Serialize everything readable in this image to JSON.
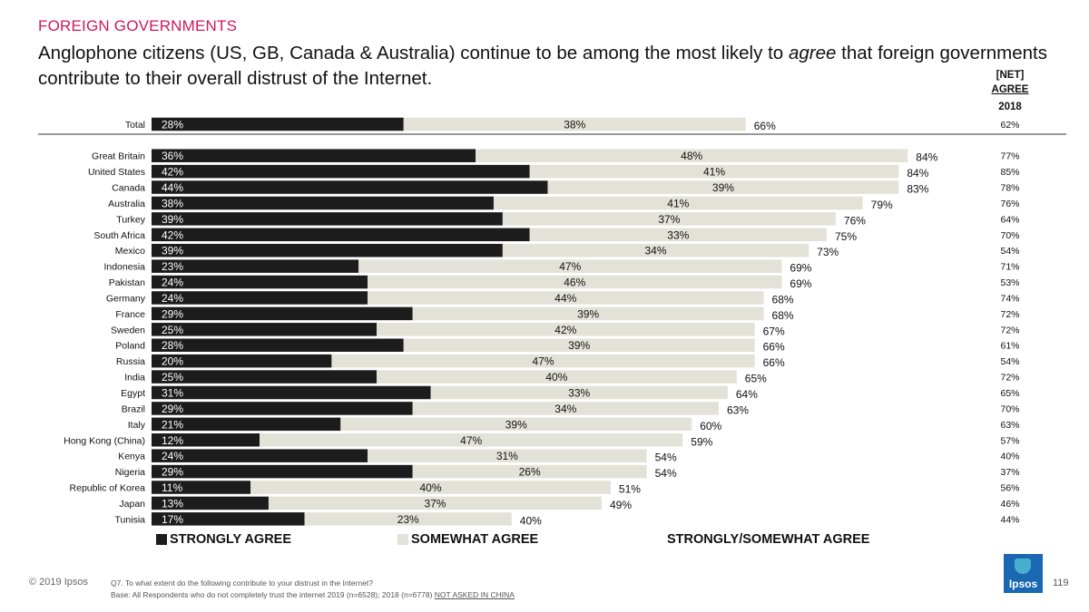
{
  "section_label": "FOREIGN GOVERNMENTS",
  "headline": {
    "pre": "Anglophone citizens (US, GB, Canada & Australia) continue to be among the most likely to ",
    "emph": "agree",
    "post": " that foreign governments contribute to their overall distrust of the Internet."
  },
  "net_header": {
    "line1": "[NET]",
    "line2": "AGREE",
    "line3": "2018"
  },
  "legend": {
    "strongly": "STRONGLY AGREE",
    "somewhat": "SOMEWHAT AGREE",
    "net": "STRONGLY/SOMEWHAT AGREE"
  },
  "colors": {
    "strongly": "#1c1c1c",
    "somewhat": "#e3e2d8",
    "accent": "#d1185d",
    "logo": "#1a68b2"
  },
  "footer": {
    "copyright": "© 2019 Ipsos",
    "question": "Q7.  To what extent do the following contribute to your distrust in the Internet?",
    "base": "Base: All Respondents who do not completely trust the internet 2019 (n=6528); 2018 (n=6778) ",
    "not_asked": "NOT ASKED IN CHINA",
    "page": "119",
    "logo_text": "Ipsos"
  },
  "chart_data": {
    "type": "bar",
    "orientation": "horizontal",
    "stacked": true,
    "unit": "%",
    "categories": [
      "Total",
      "Great Britain",
      "United States",
      "Canada",
      "Australia",
      "Turkey",
      "South Africa",
      "Mexico",
      "Indonesia",
      "Pakistan",
      "Germany",
      "France",
      "Sweden",
      "Poland",
      "Russia",
      "India",
      "Egypt",
      "Brazil",
      "Italy",
      "Hong Kong (China)",
      "Kenya",
      "Nigeria",
      "Republic of Korea",
      "Japan",
      "Tunisia"
    ],
    "series": [
      {
        "name": "STRONGLY AGREE",
        "values": [
          28,
          36,
          42,
          44,
          38,
          39,
          42,
          39,
          23,
          24,
          24,
          29,
          25,
          28,
          20,
          25,
          31,
          29,
          21,
          12,
          24,
          29,
          11,
          13,
          17
        ]
      },
      {
        "name": "SOMEWHAT AGREE",
        "values": [
          38,
          48,
          41,
          39,
          41,
          37,
          33,
          34,
          47,
          46,
          44,
          39,
          42,
          39,
          47,
          40,
          33,
          34,
          39,
          47,
          31,
          26,
          40,
          37,
          23
        ]
      }
    ],
    "net": {
      "name": "STRONGLY/SOMEWHAT AGREE",
      "values": [
        66,
        84,
        84,
        83,
        79,
        76,
        75,
        73,
        69,
        69,
        68,
        68,
        67,
        66,
        66,
        65,
        64,
        63,
        60,
        59,
        54,
        54,
        51,
        49,
        40
      ]
    },
    "net_2018": [
      "62%",
      "77%",
      "85%",
      "78%",
      "76%",
      "64%",
      "70%",
      "54%",
      "71%",
      "53%",
      "74%",
      "72%",
      "72%",
      "61%",
      "54%",
      "72%",
      "65%",
      "70%",
      "63%",
      "57%",
      "40%",
      "37%",
      "56%",
      "46%",
      "44%"
    ]
  }
}
